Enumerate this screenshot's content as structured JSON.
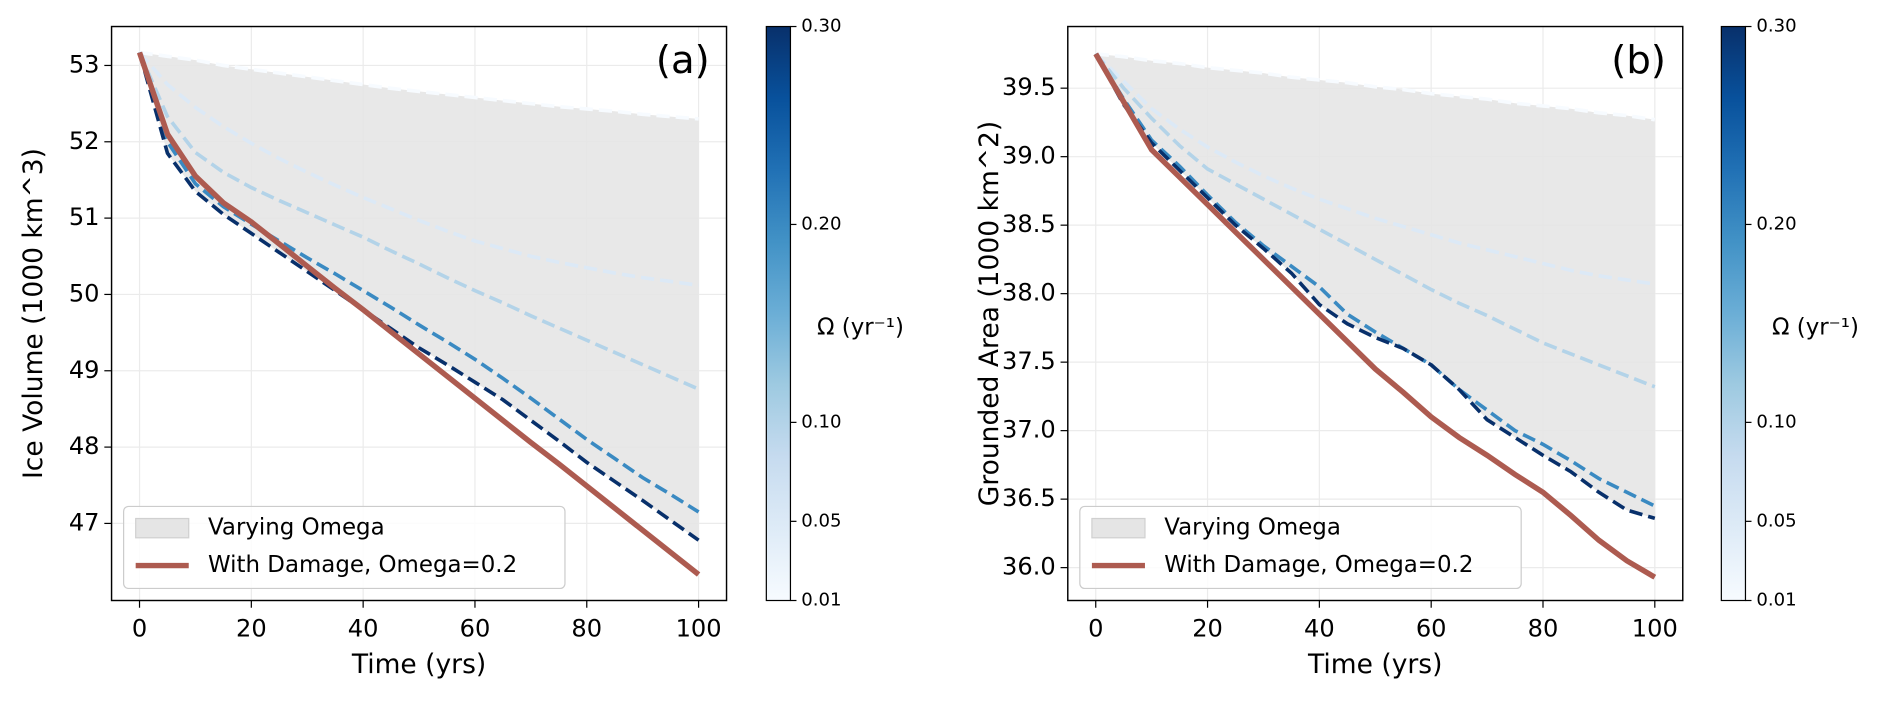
{
  "chart_data": [
    {
      "type": "line",
      "panel_label": "(a)",
      "xlabel": "Time (yrs)",
      "ylabel": "Ice Volume (1000 km^3)",
      "x": [
        0,
        5,
        10,
        15,
        20,
        25,
        30,
        35,
        40,
        45,
        50,
        55,
        60,
        65,
        70,
        75,
        80,
        85,
        90,
        95,
        100
      ],
      "xlim": [
        -5,
        105
      ],
      "xticks": [
        0,
        20,
        40,
        60,
        80,
        100
      ],
      "ylim": [
        45.99,
        53.51
      ],
      "yticks": [
        47,
        48,
        49,
        50,
        51,
        52,
        53
      ],
      "grid": true,
      "fill": {
        "name": "Varying Omega",
        "color": "#e5e5e5"
      },
      "series": [
        {
          "omega": 0.01,
          "linestyle": "dashed",
          "values": [
            53.17,
            53.12,
            53.07,
            53.0,
            52.95,
            52.9,
            52.85,
            52.8,
            52.75,
            52.7,
            52.66,
            52.62,
            52.58,
            52.54,
            52.5,
            52.46,
            52.43,
            52.4,
            52.36,
            52.33,
            52.3
          ]
        },
        {
          "omega": 0.05,
          "linestyle": "dashed",
          "values": [
            53.17,
            52.75,
            52.45,
            52.2,
            51.98,
            51.78,
            51.6,
            51.43,
            51.27,
            51.12,
            50.97,
            50.83,
            50.7,
            50.6,
            50.5,
            50.42,
            50.35,
            50.28,
            50.22,
            50.17,
            50.12
          ]
        },
        {
          "omega": 0.1,
          "linestyle": "dashed",
          "values": [
            53.17,
            52.33,
            51.86,
            51.6,
            51.4,
            51.23,
            51.07,
            50.91,
            50.75,
            50.57,
            50.4,
            50.22,
            50.05,
            49.89,
            49.72,
            49.56,
            49.4,
            49.24,
            49.08,
            48.92,
            48.76
          ]
        },
        {
          "omega": 0.2,
          "linestyle": "dashed",
          "values": [
            53.17,
            52.0,
            51.45,
            51.15,
            50.92,
            50.7,
            50.48,
            50.27,
            50.05,
            49.83,
            49.6,
            49.38,
            49.15,
            48.9,
            48.64,
            48.37,
            48.1,
            47.85,
            47.6,
            47.38,
            47.15
          ]
        },
        {
          "omega": 0.3,
          "linestyle": "dashed",
          "values": [
            53.17,
            51.85,
            51.35,
            51.05,
            50.8,
            50.55,
            50.3,
            50.05,
            49.8,
            49.55,
            49.3,
            49.08,
            48.85,
            48.62,
            48.35,
            48.08,
            47.8,
            47.55,
            47.3,
            47.04,
            46.78
          ]
        },
        {
          "name": "With Damage, Omega=0.2",
          "color": "#ad5b50",
          "linestyle": "solid",
          "values": [
            53.17,
            52.1,
            51.55,
            51.2,
            50.95,
            50.66,
            50.37,
            50.08,
            49.8,
            49.51,
            49.22,
            48.93,
            48.64,
            48.35,
            48.06,
            47.78,
            47.49,
            47.2,
            46.91,
            46.62,
            46.33
          ]
        }
      ],
      "colorbar": {
        "label": "Ω (yr⁻¹)",
        "colormap": "Blues",
        "lim": [
          0.01,
          0.3
        ],
        "ticks": [
          0.01,
          0.05,
          {
            "value": 0.1,
            "label": "0.10"
          },
          {
            "value": 0.2,
            "label": "0.20"
          },
          {
            "value": 0.3,
            "label": "0.30"
          }
        ]
      }
    },
    {
      "type": "line",
      "panel_label": "(b)",
      "xlabel": "Time (yrs)",
      "ylabel": "Grounded Area (1000 km^2)",
      "x": [
        0,
        5,
        10,
        15,
        20,
        25,
        30,
        35,
        40,
        45,
        50,
        55,
        60,
        65,
        70,
        75,
        80,
        85,
        90,
        95,
        100
      ],
      "xlim": [
        -5,
        105
      ],
      "xticks": [
        0,
        20,
        40,
        60,
        80,
        100
      ],
      "ylim": [
        35.76,
        39.95
      ],
      "yticks": [
        {
          "value": 36,
          "label": "36.0"
        },
        36.5,
        {
          "value": 37,
          "label": "37.0"
        },
        37.5,
        {
          "value": 38,
          "label": "38.0"
        },
        38.5,
        {
          "value": 39,
          "label": "39.0"
        },
        39.5
      ],
      "grid": true,
      "fill": {
        "name": "Varying Omega",
        "color": "#e5e5e5"
      },
      "series": [
        {
          "omega": 0.01,
          "linestyle": "dashed",
          "values": [
            39.75,
            39.73,
            39.7,
            39.68,
            39.65,
            39.63,
            39.61,
            39.58,
            39.56,
            39.54,
            39.51,
            39.49,
            39.46,
            39.44,
            39.42,
            39.39,
            39.37,
            39.35,
            39.32,
            39.3,
            39.27
          ]
        },
        {
          "omega": 0.05,
          "linestyle": "dashed",
          "values": [
            39.75,
            39.55,
            39.35,
            39.2,
            39.07,
            38.96,
            38.86,
            38.77,
            38.69,
            38.62,
            38.55,
            38.49,
            38.43,
            38.37,
            38.32,
            38.27,
            38.22,
            38.17,
            38.13,
            38.1,
            38.07
          ]
        },
        {
          "omega": 0.1,
          "linestyle": "dashed",
          "values": [
            39.75,
            39.5,
            39.28,
            39.08,
            38.91,
            38.8,
            38.69,
            38.58,
            38.47,
            38.36,
            38.25,
            38.14,
            38.03,
            37.93,
            37.84,
            37.74,
            37.64,
            37.56,
            37.48,
            37.4,
            37.32
          ]
        },
        {
          "omega": 0.2,
          "linestyle": "dashed",
          "values": [
            39.75,
            39.42,
            39.12,
            38.93,
            38.72,
            38.52,
            38.35,
            38.2,
            38.05,
            37.85,
            37.72,
            37.6,
            37.48,
            37.3,
            37.15,
            37.0,
            36.9,
            36.78,
            36.65,
            36.55,
            36.45
          ]
        },
        {
          "omega": 0.3,
          "linestyle": "dashed",
          "values": [
            39.75,
            39.38,
            39.1,
            38.9,
            38.7,
            38.5,
            38.33,
            38.15,
            37.92,
            37.78,
            37.68,
            37.6,
            37.48,
            37.3,
            37.08,
            36.95,
            36.82,
            36.7,
            36.55,
            36.42,
            36.36
          ]
        },
        {
          "name": "With Damage, Omega=0.2",
          "color": "#ad5b50",
          "linestyle": "solid",
          "values": [
            39.75,
            39.4,
            39.05,
            38.85,
            38.65,
            38.45,
            38.25,
            38.05,
            37.85,
            37.65,
            37.45,
            37.28,
            37.1,
            36.95,
            36.82,
            36.68,
            36.55,
            36.38,
            36.2,
            36.05,
            35.93
          ]
        }
      ],
      "colorbar": {
        "label": "Ω (yr⁻¹)",
        "colormap": "Blues",
        "lim": [
          0.01,
          0.3
        ],
        "ticks": [
          0.01,
          0.05,
          {
            "value": 0.1,
            "label": "0.10"
          },
          {
            "value": 0.2,
            "label": "0.20"
          },
          {
            "value": 0.3,
            "label": "0.30"
          }
        ]
      }
    }
  ]
}
